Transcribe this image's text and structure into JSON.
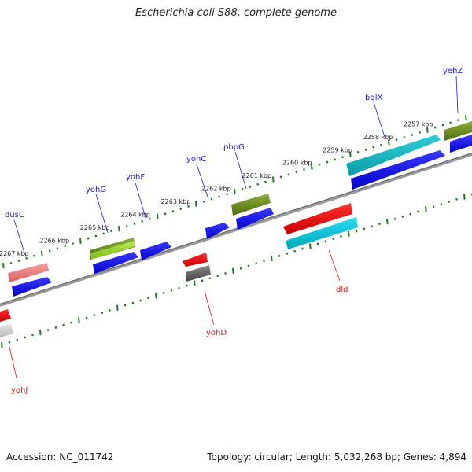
{
  "title": "Escherichia coli S88, complete genome",
  "footer": {
    "accession": "Accession: NC_011742",
    "topology": "Topology: circular; Length: 5,032,268 bp; Genes: 4,894"
  },
  "colors": {
    "backbone": "#8a8a8a",
    "tick": "#1e7a1e",
    "label_forward": "#1a1ad6",
    "label_reverse": "#d81818",
    "tick_label": "#222222"
  },
  "scale": {
    "unit": "kbp",
    "labels": [
      {
        "kbp": 2257,
        "text": "2257 kbp"
      },
      {
        "kbp": 2258,
        "text": "2258 kbp"
      },
      {
        "kbp": 2259,
        "text": "2259 kbp"
      },
      {
        "kbp": 2260,
        "text": "2260 kbp"
      },
      {
        "kbp": 2261,
        "text": "2261 kbp"
      },
      {
        "kbp": 2262,
        "text": "2262 kbp"
      },
      {
        "kbp": 2263,
        "text": "2263 kbp"
      },
      {
        "kbp": 2264,
        "text": "2264 kbp"
      },
      {
        "kbp": 2265,
        "text": "2265 kbp"
      },
      {
        "kbp": 2266,
        "text": "2266 kbp"
      },
      {
        "kbp": 2267,
        "text": "2267 kbp"
      }
    ]
  },
  "genes": [
    {
      "name": "yehZ",
      "strand": "forward",
      "color": "#6b8e23"
    },
    {
      "name": "bglX",
      "strand": "forward",
      "color": "#00bcd4"
    },
    {
      "name": "pbpG",
      "strand": "forward",
      "color": "#6b8e23"
    },
    {
      "name": "yohC",
      "strand": "forward",
      "color": "#0000ee"
    },
    {
      "name": "yohF",
      "strand": "forward",
      "color": "#0000ee"
    },
    {
      "name": "yohG",
      "strand": "forward",
      "color": "#9acd32"
    },
    {
      "name": "dusC",
      "strand": "forward",
      "color": "#e87878"
    },
    {
      "name": "dld",
      "strand": "reverse",
      "color": "#ee1111"
    },
    {
      "name": "yohD",
      "strand": "reverse",
      "color": "#ee1111"
    },
    {
      "name": "yohJ",
      "strand": "reverse",
      "color": "#ee1111"
    }
  ]
}
